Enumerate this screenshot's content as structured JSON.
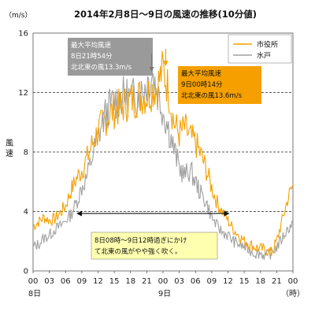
{
  "chart_data": {
    "type": "line",
    "title": "2014年2月8日～9日の風速の推移(10分値)",
    "unit_label": "（m/s）",
    "ylabel": "風速",
    "xlabel_unit": "（時）",
    "ylim": [
      0,
      16
    ],
    "yticks": [
      0,
      4,
      8,
      12,
      16
    ],
    "grid_y_dashed": [
      4,
      8,
      12
    ],
    "x_tick_labels": [
      "00",
      "03",
      "06",
      "09",
      "12",
      "15",
      "18",
      "21",
      "00",
      "03",
      "06",
      "09",
      "12",
      "15",
      "18",
      "21",
      "00"
    ],
    "day_labels": [
      {
        "label": "8日",
        "at_hour": 0
      },
      {
        "label": "9日",
        "at_hour": 24
      }
    ],
    "x_range_hours": [
      0,
      48
    ],
    "legend": {
      "position": "top-right",
      "items": [
        {
          "name": "市役所",
          "color": "#f5a000"
        },
        {
          "name": "水戸",
          "color": "#a0a0a0"
        }
      ]
    },
    "series": [
      {
        "name": "市役所",
        "color": "#f5a000",
        "values": [
          {
            "x": 0,
            "y": 3.0
          },
          {
            "x": 1,
            "y": 3.3
          },
          {
            "x": 2,
            "y": 3.6
          },
          {
            "x": 3,
            "y": 3.4
          },
          {
            "x": 4,
            "y": 3.5
          },
          {
            "x": 5,
            "y": 3.9
          },
          {
            "x": 6,
            "y": 4.4
          },
          {
            "x": 7,
            "y": 5.4
          },
          {
            "x": 8,
            "y": 6.2
          },
          {
            "x": 9,
            "y": 6.8
          },
          {
            "x": 10,
            "y": 7.6
          },
          {
            "x": 11,
            "y": 8.6
          },
          {
            "x": 12,
            "y": 9.4
          },
          {
            "x": 13,
            "y": 10.0
          },
          {
            "x": 14,
            "y": 10.5
          },
          {
            "x": 15,
            "y": 10.8
          },
          {
            "x": 16,
            "y": 11.0
          },
          {
            "x": 17,
            "y": 11.2
          },
          {
            "x": 18,
            "y": 11.5
          },
          {
            "x": 19,
            "y": 11.6
          },
          {
            "x": 20,
            "y": 11.8
          },
          {
            "x": 21,
            "y": 11.8
          },
          {
            "x": 22,
            "y": 12.2
          },
          {
            "x": 23,
            "y": 12.5
          },
          {
            "x": 24,
            "y": 13.6
          },
          {
            "x": 25,
            "y": 12.2
          },
          {
            "x": 26,
            "y": 10.0
          },
          {
            "x": 27,
            "y": 9.2
          },
          {
            "x": 28,
            "y": 9.6
          },
          {
            "x": 29,
            "y": 9.0
          },
          {
            "x": 30,
            "y": 8.6
          },
          {
            "x": 31,
            "y": 7.8
          },
          {
            "x": 32,
            "y": 6.8
          },
          {
            "x": 33,
            "y": 5.6
          },
          {
            "x": 34,
            "y": 4.6
          },
          {
            "x": 35,
            "y": 4.0
          },
          {
            "x": 36,
            "y": 3.4
          },
          {
            "x": 37,
            "y": 2.8
          },
          {
            "x": 38,
            "y": 2.4
          },
          {
            "x": 39,
            "y": 2.0
          },
          {
            "x": 40,
            "y": 1.8
          },
          {
            "x": 41,
            "y": 1.6
          },
          {
            "x": 42,
            "y": 1.5
          },
          {
            "x": 43,
            "y": 1.4
          },
          {
            "x": 44,
            "y": 1.2
          },
          {
            "x": 45,
            "y": 2.0
          },
          {
            "x": 46,
            "y": 3.4
          },
          {
            "x": 47,
            "y": 4.8
          },
          {
            "x": 48,
            "y": 5.8
          }
        ]
      },
      {
        "name": "水戸",
        "color": "#a0a0a0",
        "values": [
          {
            "x": 0,
            "y": 1.6
          },
          {
            "x": 1,
            "y": 1.8
          },
          {
            "x": 2,
            "y": 2.2
          },
          {
            "x": 3,
            "y": 2.4
          },
          {
            "x": 4,
            "y": 2.8
          },
          {
            "x": 5,
            "y": 3.0
          },
          {
            "x": 6,
            "y": 3.4
          },
          {
            "x": 7,
            "y": 3.8
          },
          {
            "x": 8,
            "y": 4.6
          },
          {
            "x": 9,
            "y": 5.6
          },
          {
            "x": 10,
            "y": 6.4
          },
          {
            "x": 11,
            "y": 7.8
          },
          {
            "x": 12,
            "y": 9.0
          },
          {
            "x": 13,
            "y": 10.2
          },
          {
            "x": 14,
            "y": 11.0
          },
          {
            "x": 15,
            "y": 11.4
          },
          {
            "x": 16,
            "y": 11.6
          },
          {
            "x": 17,
            "y": 11.8
          },
          {
            "x": 18,
            "y": 11.6
          },
          {
            "x": 19,
            "y": 11.8
          },
          {
            "x": 20,
            "y": 12.0
          },
          {
            "x": 21,
            "y": 12.6
          },
          {
            "x": 22,
            "y": 13.3
          },
          {
            "x": 23,
            "y": 12.0
          },
          {
            "x": 24,
            "y": 10.8
          },
          {
            "x": 25,
            "y": 9.6
          },
          {
            "x": 26,
            "y": 8.2
          },
          {
            "x": 27,
            "y": 7.0
          },
          {
            "x": 28,
            "y": 6.4
          },
          {
            "x": 29,
            "y": 6.8
          },
          {
            "x": 30,
            "y": 6.0
          },
          {
            "x": 31,
            "y": 5.2
          },
          {
            "x": 32,
            "y": 4.6
          },
          {
            "x": 33,
            "y": 3.6
          },
          {
            "x": 34,
            "y": 3.0
          },
          {
            "x": 35,
            "y": 2.6
          },
          {
            "x": 36,
            "y": 2.4
          },
          {
            "x": 37,
            "y": 2.0
          },
          {
            "x": 38,
            "y": 1.8
          },
          {
            "x": 39,
            "y": 1.6
          },
          {
            "x": 40,
            "y": 1.4
          },
          {
            "x": 41,
            "y": 1.2
          },
          {
            "x": 42,
            "y": 1.2
          },
          {
            "x": 43,
            "y": 1.0
          },
          {
            "x": 44,
            "y": 1.2
          },
          {
            "x": 45,
            "y": 1.6
          },
          {
            "x": 46,
            "y": 2.2
          },
          {
            "x": 47,
            "y": 2.8
          },
          {
            "x": 48,
            "y": 3.2
          }
        ]
      }
    ],
    "annotations": {
      "max_mito": {
        "lines": [
          "最大平均風速",
          "8日21時54分",
          "北北東の風13.3m/s"
        ],
        "color": "#9a9a9a",
        "at_hour": 21.9,
        "value": 13.3
      },
      "max_shiyakusho": {
        "lines": [
          "最大平均風速",
          "9日00時14分",
          "北北東の風13.6m/s"
        ],
        "color": "#f5a000",
        "at_hour": 24.2,
        "value": 13.6
      },
      "range_note": {
        "lines": [
          "8日08時～9日12時過ぎにかけ",
          "て北東の風がやや強く吹く。"
        ],
        "from_hour": 8,
        "to_hour": 36.3,
        "value": 4.5,
        "bg_color": "#ffffb0"
      }
    }
  }
}
